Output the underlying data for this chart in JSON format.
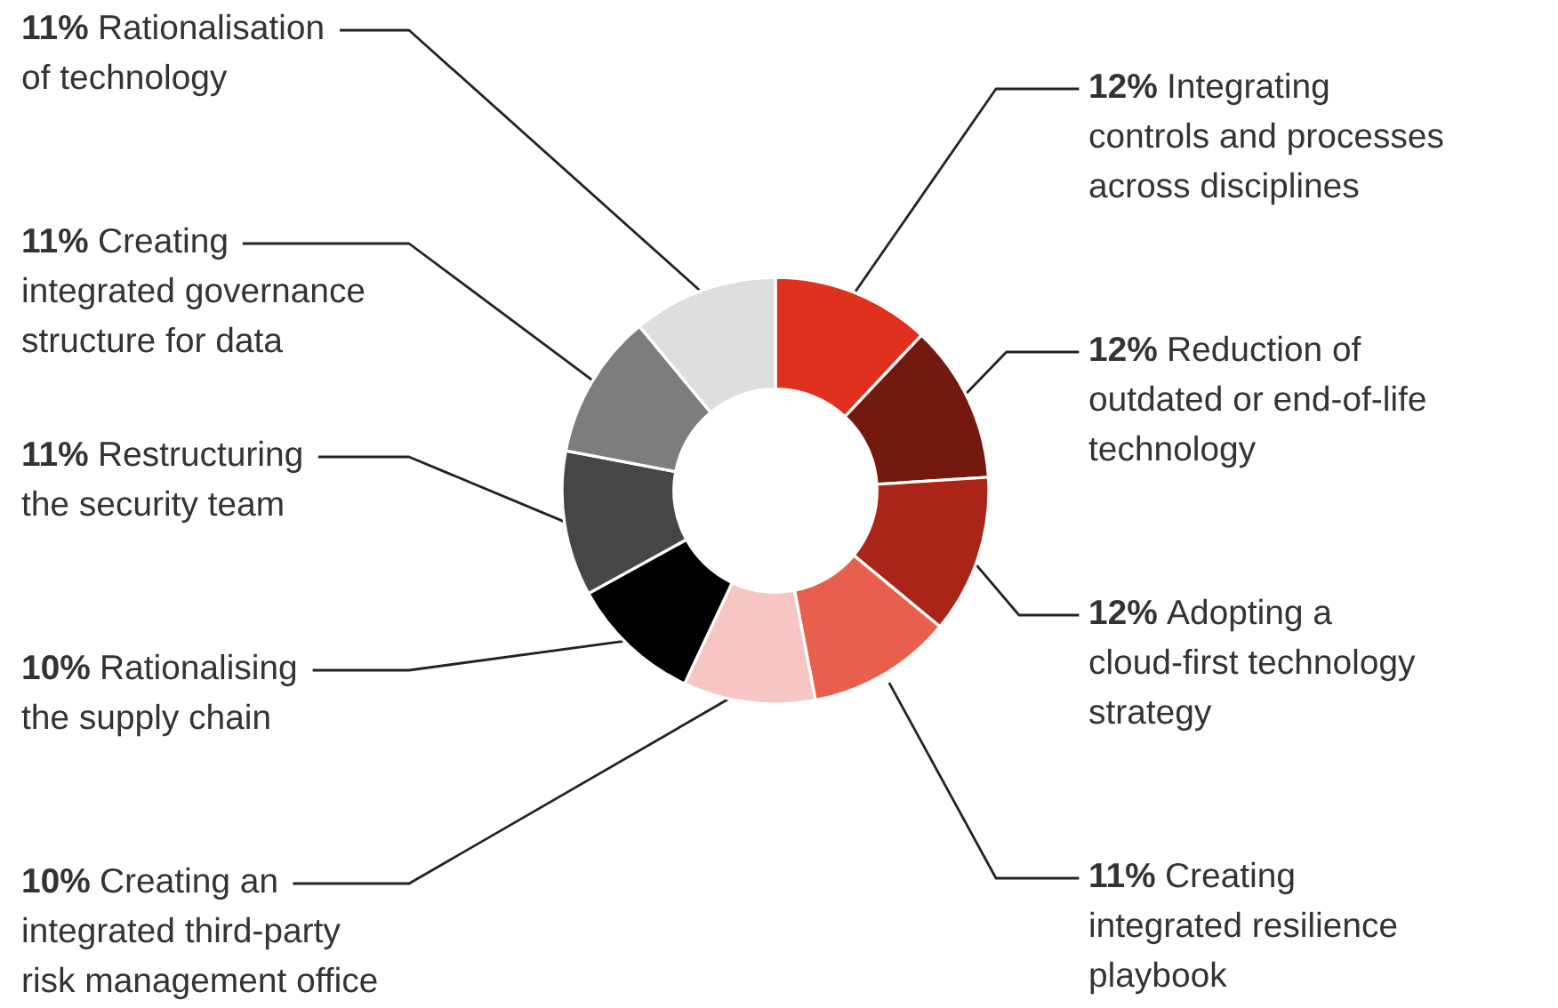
{
  "chart_data": {
    "type": "donut",
    "categories": [
      "Integrating\ncontrols and processes\nacross disciplines",
      "Reduction of\noutdated or end-of-life\ntechnology",
      "Adopting a\ncloud-first technology\nstrategy",
      "Creating\nintegrated resilience\nplaybook",
      "Creating an\nintegrated third-party\nrisk management office",
      "Rationalising\nthe supply chain",
      "Restructuring\nthe security team",
      "Creating\nintegrated governance\nstructure for data",
      "Rationalisation\nof technology"
    ],
    "values": [
      12,
      12,
      12,
      11,
      10,
      10,
      11,
      11,
      11
    ],
    "value_labels": [
      "12%",
      "12%",
      "12%",
      "11%",
      "10%",
      "10%",
      "11%",
      "11%",
      "11%"
    ],
    "colors": [
      "#e0301e",
      "#74190f",
      "#aa2417",
      "#e8604d",
      "#f7c6c2",
      "#000000",
      "#464646",
      "#7d7d7d",
      "#dedede"
    ]
  }
}
